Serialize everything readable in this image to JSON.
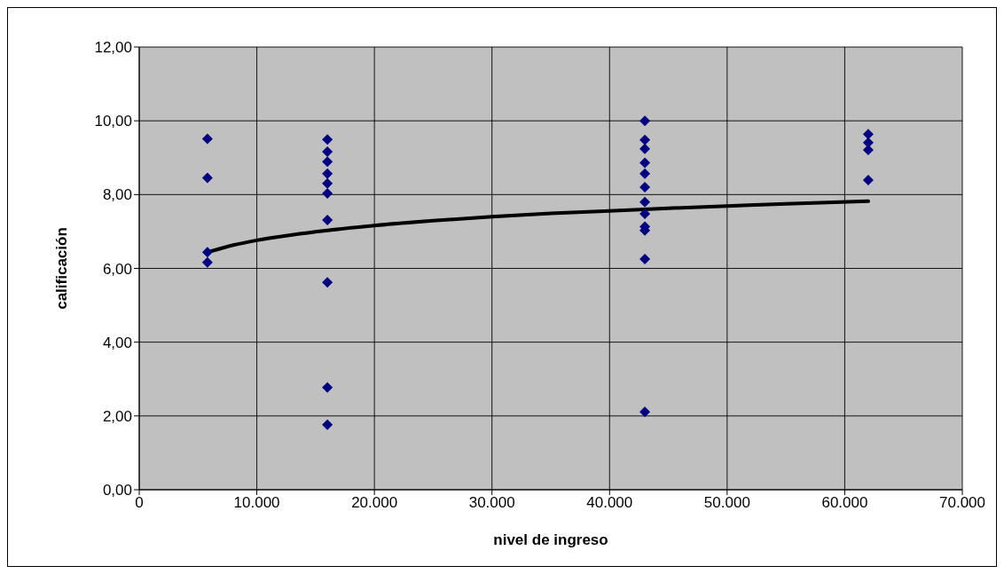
{
  "chart_data": {
    "type": "scatter",
    "xlabel": "nivel de ingreso",
    "ylabel": "calificación",
    "grid": true,
    "xlim": [
      0,
      70000
    ],
    "xticks": [
      0,
      {
        "value": 10000,
        "label": "10.000"
      },
      {
        "value": 20000,
        "label": "20.000"
      },
      {
        "value": 30000,
        "label": "30.000"
      },
      {
        "value": 40000,
        "label": "40.000"
      },
      {
        "value": 50000,
        "label": "50.000"
      },
      {
        "value": 60000,
        "label": "60.000"
      },
      {
        "value": 70000,
        "label": "70.000"
      }
    ],
    "ylim": [
      0,
      12
    ],
    "yticks": [
      {
        "value": 0,
        "label": "0,00"
      },
      {
        "value": 2,
        "label": "2,00"
      },
      {
        "value": 4,
        "label": "4,00"
      },
      {
        "value": 6,
        "label": "6,00"
      },
      {
        "value": 8,
        "label": "8,00"
      },
      {
        "value": 10,
        "label": "10,00"
      },
      {
        "value": 12,
        "label": "12,00"
      }
    ],
    "series": [
      {
        "marker": "diamond",
        "color": "#000080",
        "x": [
          5800,
          5800,
          5800,
          5800,
          16000,
          16000,
          16000,
          16000,
          16000,
          16000,
          16000,
          16000,
          16000,
          16000,
          43000,
          43000,
          43000,
          43000,
          43000,
          43000,
          43000,
          43000,
          43000,
          43000,
          43000,
          43000,
          62000,
          62000,
          62000,
          62000
        ],
        "values": [
          9.51,
          8.45,
          6.44,
          6.16,
          9.49,
          9.16,
          8.89,
          8.57,
          8.3,
          8.03,
          7.31,
          5.62,
          2.77,
          1.76,
          10.0,
          9.48,
          9.24,
          8.86,
          8.57,
          8.2,
          7.8,
          7.48,
          7.13,
          7.03,
          6.25,
          2.11,
          9.64,
          9.41,
          9.21,
          8.39
        ]
      },
      {
        "type": "line",
        "color": "#000000",
        "x": [
          5800,
          8000,
          10000,
          13000,
          16000,
          20000,
          25000,
          30000,
          35000,
          40000,
          45000,
          50000,
          55000,
          62000
        ],
        "values": [
          6.44,
          6.63,
          6.76,
          6.91,
          7.03,
          7.16,
          7.29,
          7.4,
          7.49,
          7.56,
          7.63,
          7.69,
          7.75,
          7.82
        ]
      }
    ]
  }
}
